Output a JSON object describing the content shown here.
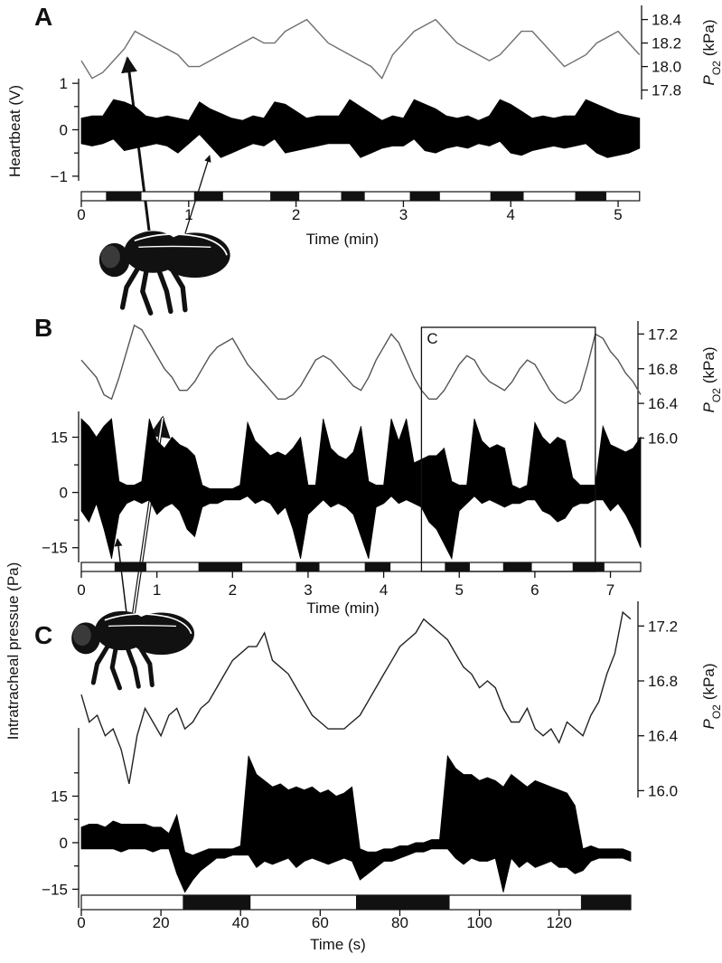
{
  "shared_ylabel": "Intratracheal pressue (Pa)",
  "chart_data": [
    {
      "type": "line",
      "label": "A",
      "ylabel": "Heartbeat (V)",
      "xlabel": "Time (min)",
      "y2_label_symbol": "P",
      "y2_label_subscript": "O2",
      "y2_label_unit": "(kPa)",
      "x": [
        0,
        0.1,
        0.2,
        0.3,
        0.4,
        0.5,
        0.6,
        0.7,
        0.8,
        0.9,
        1,
        1.1,
        1.2,
        1.3,
        1.4,
        1.5,
        1.6,
        1.7,
        1.8,
        1.9,
        2,
        2.1,
        2.2,
        2.3,
        2.4,
        2.5,
        2.6,
        2.7,
        2.8,
        2.9,
        3,
        3.1,
        3.2,
        3.3,
        3.4,
        3.5,
        3.6,
        3.7,
        3.8,
        3.9,
        4,
        4.1,
        4.2,
        4.3,
        4.4,
        4.5,
        4.6,
        4.7,
        4.8,
        4.9,
        5,
        5.1,
        5.2
      ],
      "series": [
        {
          "color": "#707070",
          "axis": "y2",
          "values": [
            18.05,
            17.9,
            17.95,
            18.05,
            18.15,
            18.3,
            18.25,
            18.2,
            18.15,
            18.1,
            18.0,
            18.0,
            18.05,
            18.1,
            18.15,
            18.2,
            18.25,
            18.2,
            18.2,
            18.3,
            18.35,
            18.4,
            18.3,
            18.2,
            18.15,
            18.1,
            18.05,
            18.0,
            17.9,
            18.1,
            18.2,
            18.3,
            18.35,
            18.4,
            18.3,
            18.2,
            18.15,
            18.1,
            18.05,
            18.1,
            18.2,
            18.3,
            18.3,
            18.2,
            18.1,
            18.0,
            18.05,
            18.1,
            18.2,
            18.25,
            18.3,
            18.2,
            18.1
          ]
        },
        {
          "color": "#000000",
          "upper": [
            0.25,
            0.3,
            0.3,
            0.65,
            0.6,
            0.5,
            0.3,
            0.25,
            0.3,
            0.25,
            0.2,
            0.6,
            0.45,
            0.35,
            0.25,
            0.2,
            0.3,
            0.25,
            0.6,
            0.55,
            0.4,
            0.25,
            0.3,
            0.3,
            0.3,
            0.65,
            0.5,
            0.35,
            0.2,
            0.3,
            0.25,
            0.65,
            0.55,
            0.45,
            0.3,
            0.25,
            0.3,
            0.2,
            0.3,
            0.65,
            0.55,
            0.4,
            0.25,
            0.3,
            0.25,
            0.3,
            0.3,
            0.65,
            0.55,
            0.45,
            0.35,
            0.3,
            0.25
          ],
          "lower": [
            -0.3,
            -0.35,
            -0.3,
            -0.2,
            -0.45,
            -0.4,
            -0.35,
            -0.3,
            -0.35,
            -0.5,
            -0.3,
            -0.1,
            -0.35,
            -0.6,
            -0.5,
            -0.4,
            -0.3,
            -0.35,
            -0.2,
            -0.5,
            -0.45,
            -0.4,
            -0.35,
            -0.3,
            -0.3,
            -0.3,
            -0.6,
            -0.5,
            -0.4,
            -0.35,
            -0.35,
            -0.2,
            -0.45,
            -0.5,
            -0.4,
            -0.35,
            -0.4,
            -0.3,
            -0.35,
            -0.25,
            -0.5,
            -0.55,
            -0.45,
            -0.4,
            -0.35,
            -0.4,
            -0.35,
            -0.3,
            -0.5,
            -0.6,
            -0.55,
            -0.5,
            -0.4
          ]
        }
      ],
      "dark_periods": [
        [
          0.23,
          0.56
        ],
        [
          1.05,
          1.32
        ],
        [
          1.76,
          2.03
        ],
        [
          2.42,
          2.64
        ],
        [
          3.06,
          3.34
        ],
        [
          3.81,
          4.12
        ],
        [
          4.6,
          4.89
        ]
      ],
      "xlim": [
        0,
        5.2
      ],
      "xticks": [
        0,
        1,
        2,
        3,
        4,
        5
      ],
      "ylim": [
        -1.1,
        1.1
      ],
      "yticks": [
        {
          "value": -1,
          "label": "−1"
        },
        0,
        1
      ],
      "yminor_ticks": [
        -0.5,
        0.5
      ],
      "y2lim": [
        17.72,
        18.52
      ],
      "y2ticks": [
        17.8,
        {
          "value": 18,
          "label": "18.0"
        },
        18.2,
        18.4
      ]
    },
    {
      "type": "line",
      "label": "B",
      "xlabel": "Time (min)",
      "y2_label_symbol": "P",
      "y2_label_subscript": "O2",
      "y2_label_unit": "(kPa)",
      "x": [
        0,
        0.1,
        0.2,
        0.3,
        0.4,
        0.5,
        0.6,
        0.7,
        0.8,
        0.9,
        1,
        1.1,
        1.2,
        1.3,
        1.4,
        1.5,
        1.6,
        1.7,
        1.8,
        1.9,
        2,
        2.1,
        2.2,
        2.3,
        2.4,
        2.5,
        2.6,
        2.7,
        2.8,
        2.9,
        3,
        3.1,
        3.2,
        3.3,
        3.4,
        3.5,
        3.6,
        3.7,
        3.8,
        3.9,
        4,
        4.1,
        4.2,
        4.3,
        4.4,
        4.5,
        4.6,
        4.7,
        4.8,
        4.9,
        5,
        5.1,
        5.2,
        5.3,
        5.4,
        5.5,
        5.6,
        5.7,
        5.8,
        5.9,
        6,
        6.1,
        6.2,
        6.3,
        6.4,
        6.5,
        6.6,
        6.7,
        6.8,
        6.9,
        7,
        7.1,
        7.2,
        7.3,
        7.4
      ],
      "series": [
        {
          "color": "#555555",
          "axis": "y2",
          "values": [
            16.9,
            16.8,
            16.7,
            16.5,
            16.45,
            16.7,
            17.0,
            17.3,
            17.25,
            17.1,
            16.95,
            16.8,
            16.7,
            16.55,
            16.55,
            16.65,
            16.8,
            16.95,
            17.05,
            17.1,
            17.15,
            17.0,
            16.85,
            16.75,
            16.65,
            16.55,
            16.45,
            16.45,
            16.5,
            16.6,
            16.75,
            16.9,
            16.95,
            16.9,
            16.8,
            16.7,
            16.6,
            16.55,
            16.7,
            16.9,
            17.05,
            17.2,
            17.1,
            16.9,
            16.7,
            16.55,
            16.45,
            16.45,
            16.55,
            16.7,
            16.85,
            16.95,
            16.9,
            16.75,
            16.65,
            16.6,
            16.55,
            16.65,
            16.8,
            16.9,
            16.85,
            16.7,
            16.55,
            16.45,
            16.4,
            16.45,
            16.55,
            16.85,
            17.2,
            17.15,
            17.0,
            16.9,
            16.75,
            16.65,
            16.5
          ]
        },
        {
          "color": "#000000",
          "upper": [
            20,
            18,
            15,
            18,
            20,
            3,
            2,
            2,
            3,
            20,
            14,
            12,
            15,
            13,
            12,
            10,
            2,
            1,
            1,
            1,
            1,
            2,
            19,
            14,
            12,
            10,
            11,
            10,
            12,
            15,
            2,
            2,
            20,
            12,
            10,
            9,
            11,
            18,
            3,
            2,
            2,
            20,
            14,
            20,
            8,
            9,
            10,
            10,
            12,
            3,
            2,
            2,
            20,
            14,
            12,
            13,
            12,
            2,
            1,
            2,
            19,
            15,
            13,
            15,
            14,
            4,
            2,
            2,
            2,
            18,
            13,
            12,
            11,
            12,
            15
          ],
          "lower": [
            -5,
            -8,
            -3,
            -10,
            -18,
            -6,
            -3,
            -2,
            -3,
            -2,
            -6,
            -4,
            -3,
            -5,
            -10,
            -12,
            -4,
            -3,
            -3,
            -2,
            -2,
            -2,
            -1,
            -3,
            -2,
            -3,
            -6,
            -4,
            -10,
            -18,
            -6,
            -4,
            -2,
            -4,
            -3,
            -4,
            -6,
            -12,
            -18,
            -4,
            -3,
            -1,
            -3,
            -2,
            -3,
            -4,
            -8,
            -10,
            -14,
            -18,
            -5,
            -3,
            -1,
            -3,
            -2,
            -3,
            -4,
            -3,
            -3,
            -2,
            -2,
            -5,
            -6,
            -8,
            -7,
            -4,
            -3,
            -3,
            -2,
            -2,
            -5,
            -3,
            -6,
            -10,
            -15
          ]
        }
      ],
      "dark_periods": [
        [
          0.44,
          0.86
        ],
        [
          1.55,
          2.13
        ],
        [
          2.84,
          3.15
        ],
        [
          3.75,
          4.09
        ],
        [
          4.81,
          5.14
        ],
        [
          5.58,
          5.96
        ],
        [
          6.5,
          6.92
        ]
      ],
      "annotation_box": {
        "label": "C",
        "xlim": [
          4.5,
          6.8
        ]
      },
      "xlim": [
        0,
        7.4
      ],
      "xticks": [
        0,
        1,
        2,
        3,
        4,
        5,
        6,
        7
      ],
      "ylim": [
        -19,
        22
      ],
      "yticks": [
        {
          "value": -15,
          "label": "−15"
        },
        0,
        15
      ],
      "yminor_ticks": [
        -7.5,
        7.5
      ],
      "y2lim": [
        15.88,
        17.35
      ],
      "y2ticks": [
        {
          "value": 16,
          "label": "16.0"
        },
        16.4,
        16.8,
        17.2
      ]
    },
    {
      "type": "line",
      "label": "C",
      "xlabel": "Time (s)",
      "y2_label_symbol": "P",
      "y2_label_subscript": "O2",
      "y2_label_unit": "(kPa)",
      "x": [
        0,
        2,
        4,
        6,
        8,
        10,
        12,
        14,
        16,
        18,
        20,
        22,
        24,
        26,
        28,
        30,
        32,
        34,
        36,
        38,
        40,
        42,
        44,
        46,
        48,
        50,
        52,
        54,
        56,
        58,
        60,
        62,
        64,
        66,
        68,
        70,
        72,
        74,
        76,
        78,
        80,
        82,
        84,
        86,
        88,
        90,
        92,
        94,
        96,
        98,
        100,
        102,
        104,
        106,
        108,
        110,
        112,
        114,
        116,
        118,
        120,
        122,
        124,
        126,
        128,
        130,
        132,
        134,
        136,
        138
      ],
      "series": [
        {
          "color": "#222222",
          "axis": "y2",
          "values": [
            16.7,
            16.5,
            16.55,
            16.4,
            16.45,
            16.3,
            16.05,
            16.4,
            16.6,
            16.5,
            16.4,
            16.55,
            16.6,
            16.45,
            16.5,
            16.6,
            16.65,
            16.75,
            16.85,
            16.95,
            17.0,
            17.05,
            17.05,
            17.15,
            16.95,
            16.9,
            16.85,
            16.75,
            16.65,
            16.55,
            16.5,
            16.45,
            16.45,
            16.45,
            16.5,
            16.55,
            16.65,
            16.75,
            16.85,
            16.95,
            17.05,
            17.1,
            17.15,
            17.25,
            17.2,
            17.15,
            17.1,
            17.0,
            16.9,
            16.85,
            16.75,
            16.8,
            16.75,
            16.6,
            16.5,
            16.5,
            16.6,
            16.45,
            16.4,
            16.45,
            16.35,
            16.5,
            16.45,
            16.4,
            16.55,
            16.65,
            16.85,
            17.0,
            17.3,
            17.25
          ]
        },
        {
          "color": "#000000",
          "upper": [
            5,
            6,
            6,
            5,
            7,
            6,
            6,
            6,
            6,
            5,
            5,
            3,
            9,
            -3,
            -4,
            -3,
            -2,
            -2,
            -2,
            -2,
            -1,
            28,
            22,
            20,
            18,
            19,
            17,
            18,
            17,
            18,
            16,
            17,
            15,
            16,
            18,
            -2,
            -3,
            -3,
            -2,
            -2,
            -1,
            -1,
            0,
            0,
            1,
            1,
            28,
            24,
            22,
            22,
            20,
            21,
            20,
            18,
            22,
            20,
            18,
            20,
            19,
            18,
            17,
            16,
            12,
            -2,
            -1,
            -2,
            -2,
            -2,
            -2,
            -3
          ],
          "lower": [
            -2,
            -2,
            -2,
            -2,
            -2,
            -3,
            -2,
            -2,
            -2,
            -3,
            -2,
            -2,
            -10,
            -16,
            -12,
            -9,
            -7,
            -5,
            -5,
            -4,
            -4,
            -4,
            -8,
            -6,
            -7,
            -6,
            -5,
            -8,
            -6,
            -5,
            -6,
            -7,
            -6,
            -5,
            -6,
            -12,
            -10,
            -8,
            -6,
            -6,
            -5,
            -4,
            -3,
            -3,
            -2,
            -2,
            -2,
            -5,
            -7,
            -5,
            -6,
            -6,
            -5,
            -16,
            -5,
            -8,
            -6,
            -8,
            -7,
            -6,
            -8,
            -8,
            -10,
            -9,
            -6,
            -5,
            -5,
            -5,
            -5,
            -6
          ]
        }
      ],
      "dark_periods": [
        [
          25.5,
          42.5
        ],
        [
          69,
          92.5
        ],
        [
          125.5,
          138
        ]
      ],
      "xlim": [
        0,
        138
      ],
      "xticks": [
        0,
        20,
        40,
        60,
        80,
        100,
        120
      ],
      "ylim": [
        -21,
        37
      ],
      "yticks": [
        {
          "value": -15,
          "label": "−15"
        },
        0,
        15
      ],
      "yminor_ticks": [
        -7.5,
        7.5,
        22.5
      ],
      "y2lim": [
        15.95,
        17.38
      ],
      "y2ticks": [
        {
          "value": 16,
          "label": "16.0"
        },
        16.4,
        16.8,
        17.2
      ]
    }
  ]
}
